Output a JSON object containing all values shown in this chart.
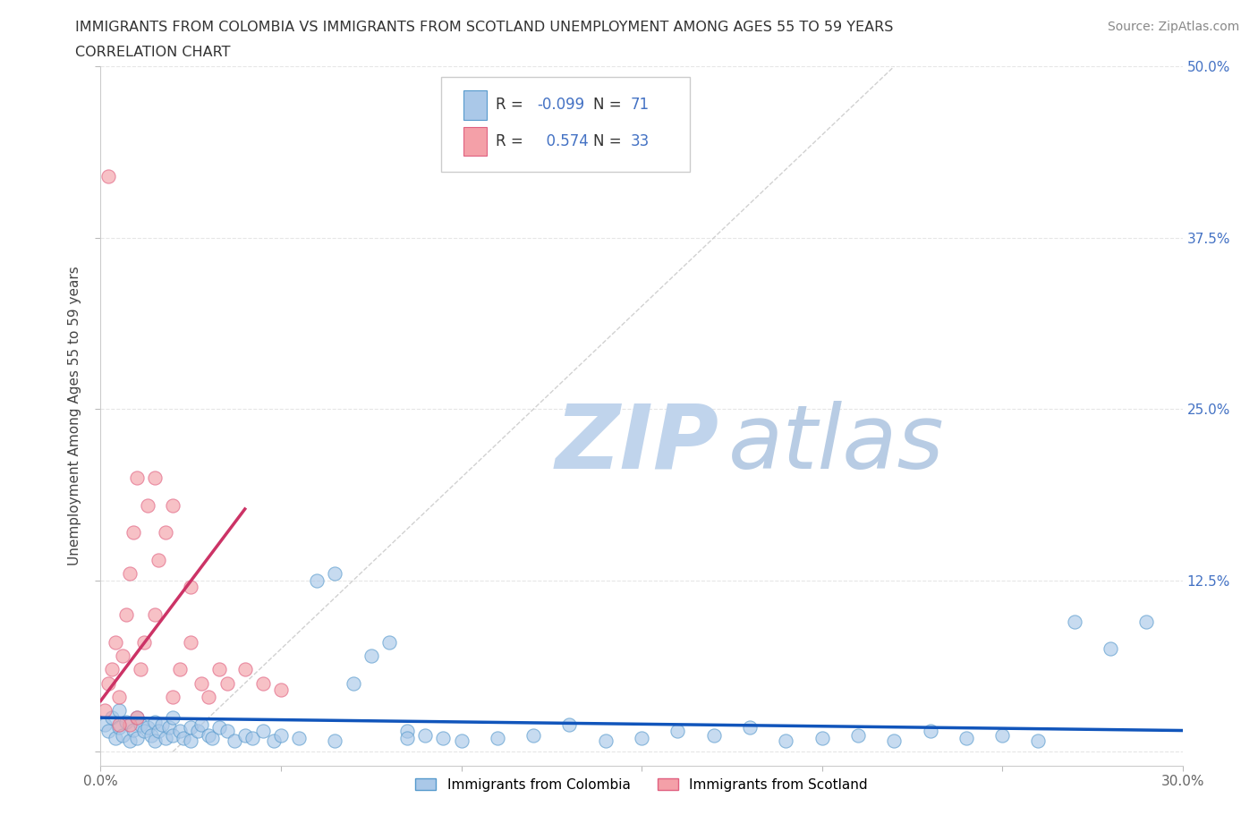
{
  "title_line1": "IMMIGRANTS FROM COLOMBIA VS IMMIGRANTS FROM SCOTLAND UNEMPLOYMENT AMONG AGES 55 TO 59 YEARS",
  "title_line2": "CORRELATION CHART",
  "source_text": "Source: ZipAtlas.com",
  "ylabel": "Unemployment Among Ages 55 to 59 years",
  "xlim": [
    0.0,
    0.3
  ],
  "ylim": [
    -0.01,
    0.5
  ],
  "yticks": [
    0.0,
    0.125,
    0.25,
    0.375,
    0.5
  ],
  "yticklabels_left": [
    "",
    "",
    "",
    "",
    ""
  ],
  "yticklabels_right": [
    "",
    "12.5%",
    "25.0%",
    "37.5%",
    "50.0%"
  ],
  "colombia_color": "#aac8e8",
  "scotland_color": "#f4a0a8",
  "colombia_edge": "#5599cc",
  "scotland_edge": "#e06080",
  "colombia_R": -0.099,
  "colombia_N": 71,
  "scotland_R": 0.574,
  "scotland_N": 33,
  "colombia_scatter_x": [
    0.001,
    0.002,
    0.003,
    0.004,
    0.005,
    0.005,
    0.006,
    0.007,
    0.008,
    0.009,
    0.01,
    0.01,
    0.011,
    0.012,
    0.013,
    0.014,
    0.015,
    0.015,
    0.016,
    0.017,
    0.018,
    0.019,
    0.02,
    0.02,
    0.022,
    0.023,
    0.025,
    0.025,
    0.027,
    0.028,
    0.03,
    0.031,
    0.033,
    0.035,
    0.037,
    0.04,
    0.042,
    0.045,
    0.048,
    0.05,
    0.055,
    0.06,
    0.065,
    0.07,
    0.075,
    0.08,
    0.085,
    0.09,
    0.095,
    0.1,
    0.11,
    0.12,
    0.13,
    0.14,
    0.15,
    0.16,
    0.17,
    0.18,
    0.19,
    0.2,
    0.21,
    0.22,
    0.23,
    0.24,
    0.25,
    0.26,
    0.27,
    0.28,
    0.065,
    0.085,
    0.29
  ],
  "colombia_scatter_y": [
    0.02,
    0.015,
    0.025,
    0.01,
    0.018,
    0.03,
    0.012,
    0.022,
    0.008,
    0.016,
    0.025,
    0.01,
    0.02,
    0.015,
    0.018,
    0.012,
    0.022,
    0.008,
    0.015,
    0.02,
    0.01,
    0.018,
    0.012,
    0.025,
    0.015,
    0.01,
    0.018,
    0.008,
    0.015,
    0.02,
    0.012,
    0.01,
    0.018,
    0.015,
    0.008,
    0.012,
    0.01,
    0.015,
    0.008,
    0.012,
    0.01,
    0.125,
    0.13,
    0.05,
    0.07,
    0.08,
    0.015,
    0.012,
    0.01,
    0.008,
    0.01,
    0.012,
    0.02,
    0.008,
    0.01,
    0.015,
    0.012,
    0.018,
    0.008,
    0.01,
    0.012,
    0.008,
    0.015,
    0.01,
    0.012,
    0.008,
    0.095,
    0.075,
    0.008,
    0.01,
    0.095
  ],
  "scotland_scatter_x": [
    0.001,
    0.002,
    0.003,
    0.004,
    0.005,
    0.006,
    0.007,
    0.008,
    0.009,
    0.01,
    0.011,
    0.012,
    0.013,
    0.015,
    0.016,
    0.018,
    0.02,
    0.022,
    0.025,
    0.028,
    0.03,
    0.033,
    0.035,
    0.04,
    0.045,
    0.05,
    0.015,
    0.02,
    0.025,
    0.008,
    0.01,
    0.005,
    0.002
  ],
  "scotland_scatter_y": [
    0.03,
    0.05,
    0.06,
    0.08,
    0.04,
    0.07,
    0.1,
    0.13,
    0.16,
    0.2,
    0.06,
    0.08,
    0.18,
    0.1,
    0.14,
    0.16,
    0.04,
    0.06,
    0.08,
    0.05,
    0.04,
    0.06,
    0.05,
    0.06,
    0.05,
    0.045,
    0.2,
    0.18,
    0.12,
    0.02,
    0.025,
    0.02,
    0.42
  ],
  "background_color": "#ffffff",
  "grid_color": "#e0e0e0",
  "title_color": "#333333",
  "axis_label_color": "#444444",
  "tick_label_color": "#666666",
  "right_tick_color": "#4472c4",
  "watermark_zip_color": "#c8daf0",
  "watermark_atlas_color": "#b0c8e8",
  "diag_color": "#cccccc",
  "col_trend_color": "#1155bb",
  "sco_trend_color": "#cc3366"
}
